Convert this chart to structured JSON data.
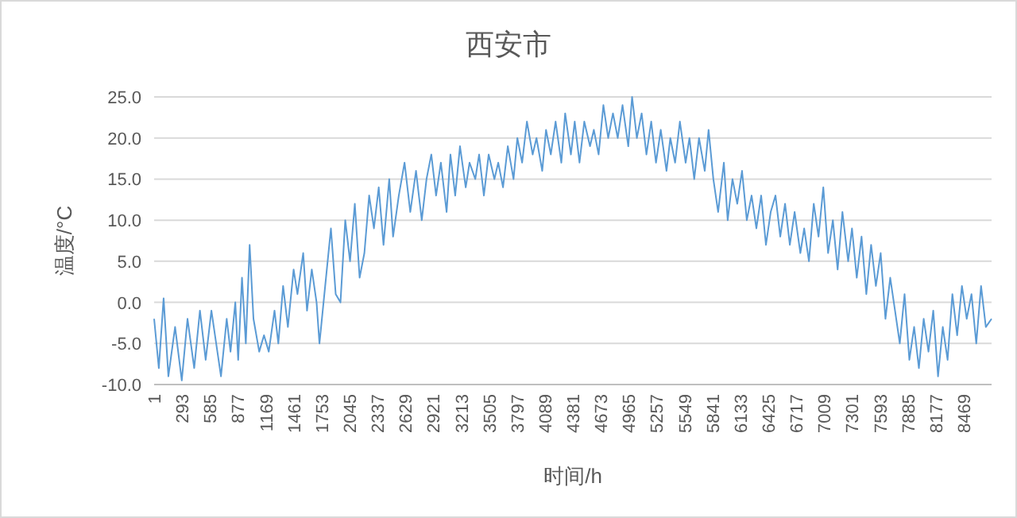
{
  "chart_data": {
    "type": "line",
    "title": "西安市",
    "xlabel": "时间/h",
    "ylabel": "温度/°C",
    "xlim": [
      1,
      8760
    ],
    "ylim": [
      -10,
      25
    ],
    "xticks": [
      1,
      293,
      585,
      877,
      1169,
      1461,
      1753,
      2045,
      2337,
      2629,
      2921,
      3213,
      3505,
      3797,
      4089,
      4381,
      4673,
      4965,
      5257,
      5549,
      5841,
      6133,
      6425,
      6717,
      7009,
      7301,
      7593,
      7885,
      8177,
      8469
    ],
    "yticks": [
      {
        "value": -10,
        "label": "-10.0"
      },
      {
        "value": -5,
        "label": "-5.0"
      },
      {
        "value": 0,
        "label": "0.0"
      },
      {
        "value": 5,
        "label": "5.0"
      },
      {
        "value": 10,
        "label": "10.0"
      },
      {
        "value": 15,
        "label": "15.0"
      },
      {
        "value": 20,
        "label": "20.0"
      },
      {
        "value": 25,
        "label": "25.0"
      }
    ],
    "grid": "y",
    "series": [
      {
        "color": "#5b9bd5",
        "x": [
          1,
          50,
          100,
          150,
          220,
          290,
          350,
          420,
          480,
          540,
          600,
          650,
          700,
          760,
          800,
          850,
          880,
          920,
          960,
          1000,
          1040,
          1100,
          1150,
          1200,
          1260,
          1300,
          1350,
          1400,
          1460,
          1500,
          1560,
          1600,
          1650,
          1700,
          1730,
          1790,
          1850,
          1900,
          1950,
          2000,
          2050,
          2100,
          2150,
          2200,
          2250,
          2300,
          2350,
          2400,
          2460,
          2500,
          2560,
          2620,
          2680,
          2740,
          2800,
          2850,
          2900,
          2950,
          3000,
          3060,
          3100,
          3150,
          3200,
          3260,
          3300,
          3360,
          3400,
          3450,
          3500,
          3560,
          3600,
          3650,
          3700,
          3760,
          3800,
          3850,
          3900,
          3960,
          4000,
          4060,
          4100,
          4150,
          4200,
          4260,
          4300,
          4360,
          4400,
          4450,
          4500,
          4560,
          4600,
          4650,
          4700,
          4750,
          4800,
          4850,
          4900,
          4960,
          5000,
          5050,
          5100,
          5150,
          5200,
          5250,
          5300,
          5360,
          5400,
          5450,
          5500,
          5560,
          5600,
          5650,
          5700,
          5760,
          5800,
          5850,
          5900,
          5960,
          6000,
          6050,
          6100,
          6150,
          6200,
          6250,
          6300,
          6350,
          6400,
          6450,
          6500,
          6550,
          6600,
          6650,
          6700,
          6760,
          6800,
          6850,
          6900,
          6950,
          7000,
          7050,
          7100,
          7150,
          7200,
          7260,
          7300,
          7350,
          7400,
          7450,
          7500,
          7550,
          7600,
          7650,
          7700,
          7750,
          7800,
          7850,
          7900,
          7950,
          8000,
          8050,
          8100,
          8150,
          8200,
          8250,
          8300,
          8350,
          8400,
          8450,
          8500,
          8550,
          8600,
          8650,
          8700,
          8760
        ],
        "values": [
          -2,
          -8,
          0.5,
          -9,
          -3,
          -9.5,
          -2,
          -8,
          -1,
          -7,
          -1,
          -5,
          -9,
          -2,
          -6,
          0,
          -7,
          3,
          -5,
          7,
          -2,
          -6,
          -4,
          -6,
          -1,
          -5,
          2,
          -3,
          4,
          1,
          6,
          -1,
          4,
          0,
          -5,
          2,
          9,
          1,
          0,
          10,
          5,
          12,
          3,
          6,
          13,
          9,
          14,
          7,
          15,
          8,
          13,
          17,
          11,
          16,
          10,
          15,
          18,
          13,
          17,
          11,
          18,
          13,
          19,
          14,
          17,
          15,
          18,
          13,
          18,
          15,
          17,
          14,
          19,
          15,
          20,
          17,
          22,
          18,
          20,
          16,
          21,
          18,
          22,
          17,
          23,
          18,
          22,
          17,
          22,
          19,
          21,
          18,
          24,
          20,
          23,
          20,
          24,
          19,
          25,
          20,
          23,
          18,
          22,
          17,
          21,
          16,
          20,
          17,
          22,
          17,
          20,
          15,
          20,
          16,
          21,
          15,
          11,
          17,
          10,
          15,
          12,
          16,
          10,
          13,
          9,
          13,
          7,
          11,
          13,
          8,
          12,
          7,
          11,
          6,
          9,
          5,
          12,
          8,
          14,
          6,
          10,
          4,
          11,
          5,
          9,
          3,
          8,
          1,
          7,
          2,
          6,
          -2,
          3,
          -1,
          -5,
          1,
          -7,
          -3,
          -8,
          -2,
          -6,
          -1,
          -9,
          -3,
          -7,
          1,
          -4,
          2,
          -2,
          1,
          -5,
          2,
          -3,
          -2
        ]
      }
    ]
  }
}
